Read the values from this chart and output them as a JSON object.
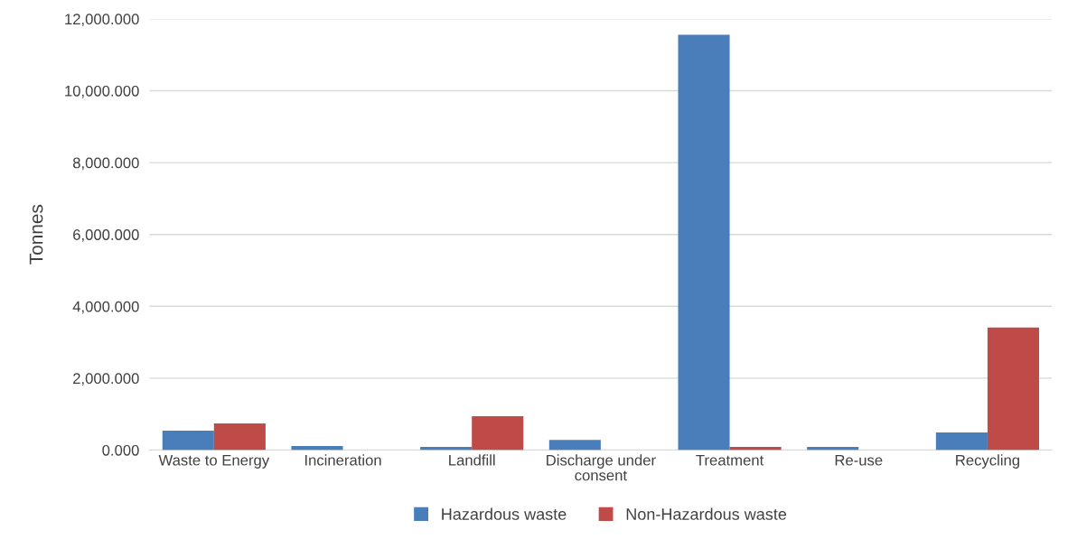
{
  "chart_data": {
    "type": "bar",
    "ylabel": "Tonnes",
    "categories": [
      "Waste to Energy",
      "Incineration",
      "Landfill",
      "Discharge under consent",
      "Treatment",
      "Re-use",
      "Recycling"
    ],
    "series": [
      {
        "name": "Hazardous waste",
        "color": "#4a7ebb",
        "values": [
          540,
          110,
          90,
          280,
          11560,
          90,
          490
        ]
      },
      {
        "name": "Non-Hazardous waste",
        "color": "#be4b48",
        "values": [
          740,
          null,
          940,
          null,
          90,
          null,
          3410
        ]
      }
    ],
    "ylim": [
      0,
      12000
    ],
    "yticks": [
      {
        "value": 0,
        "label": "0.000"
      },
      {
        "value": 2000,
        "label": "2,000.000"
      },
      {
        "value": 4000,
        "label": "4,000.000"
      },
      {
        "value": 6000,
        "label": "6,000.000"
      },
      {
        "value": 8000,
        "label": "8,000.000"
      },
      {
        "value": 10000,
        "label": "10,000.000"
      },
      {
        "value": 12000,
        "label": "12,000.000"
      }
    ],
    "grid": "y",
    "legend": "bottom"
  }
}
